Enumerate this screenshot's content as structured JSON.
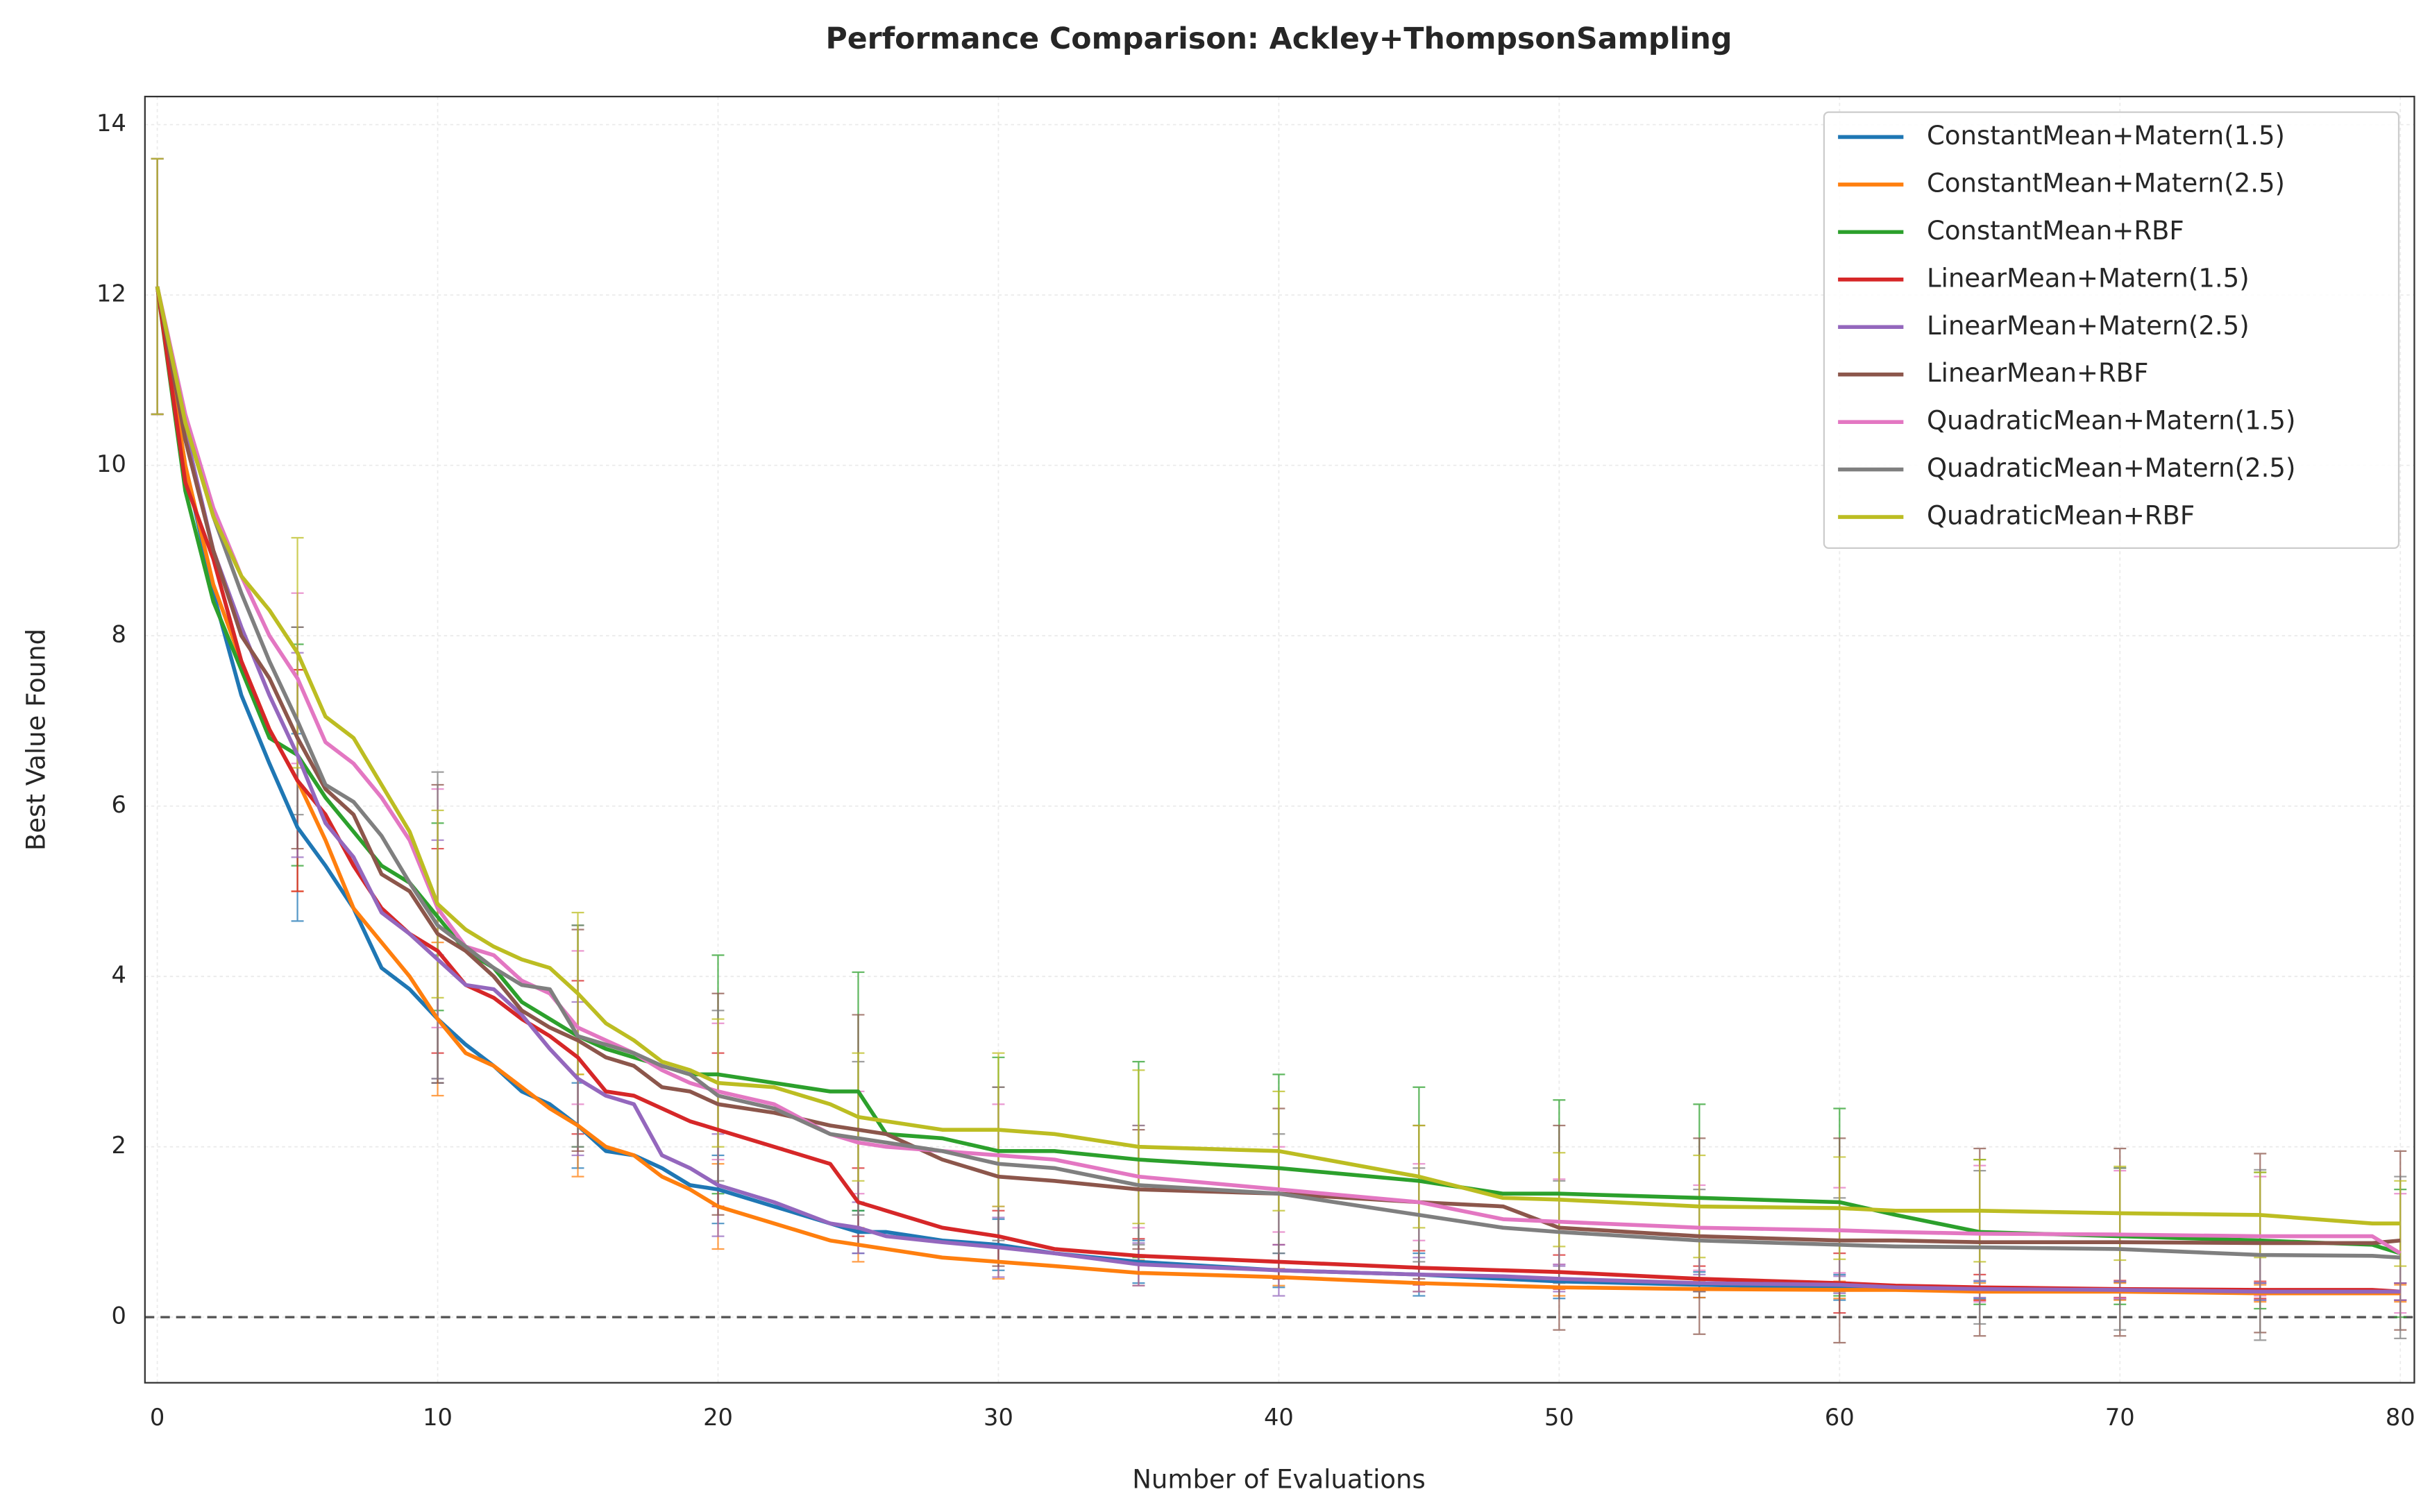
{
  "chart_data": {
    "type": "line",
    "title": "Performance Comparison: Ackley+ThompsonSampling",
    "x_label": "Number of Evaluations",
    "y_label": "Best Value Found",
    "xlim": [
      -0.44,
      80.5
    ],
    "ylim": [
      -0.77,
      14.33
    ],
    "xticks": [
      0,
      10,
      20,
      30,
      40,
      50,
      60,
      70,
      80
    ],
    "yticks": [
      0,
      2,
      4,
      6,
      8,
      10,
      12,
      14
    ],
    "grid": true,
    "legend": "upper right",
    "reference_line": 0,
    "x": [
      0,
      1,
      2,
      3,
      4,
      5,
      6,
      7,
      8,
      9,
      10,
      11,
      12,
      13,
      14,
      15,
      16,
      17,
      18,
      19,
      20,
      22,
      24,
      25,
      26,
      28,
      30,
      32,
      35,
      40,
      45,
      48,
      50,
      55,
      60,
      62,
      65,
      70,
      75,
      79,
      80
    ],
    "error_x": [
      0,
      5,
      10,
      15,
      20,
      25,
      30,
      35,
      40,
      45,
      50,
      55,
      60,
      65,
      70,
      75,
      80
    ],
    "series": [
      {
        "name": "ConstantMean+Matern(1.5)",
        "color": "#1f77b4",
        "values": [
          12.1,
          10,
          8.5,
          7.3,
          6.5,
          5.75,
          5.3,
          4.8,
          4.1,
          3.85,
          3.5,
          3.2,
          2.95,
          2.65,
          2.5,
          2.25,
          1.95,
          1.9,
          1.75,
          1.55,
          1.5,
          1.3,
          1.1,
          1.0,
          1.0,
          0.9,
          0.85,
          0.75,
          0.65,
          0.55,
          0.5,
          0.45,
          0.42,
          0.38,
          0.35,
          0.33,
          0.32,
          0.31,
          0.3,
          0.3,
          0.3
        ],
        "errors": [
          1.5,
          1.1,
          0.75,
          0.5,
          0.4,
          0.25,
          0.3,
          0.25,
          0.2,
          0.25,
          0.2,
          0.15,
          0.15,
          0.1,
          0.1,
          0.1,
          0.1
        ]
      },
      {
        "name": "ConstantMean+Matern(2.5)",
        "color": "#ff7f0e",
        "values": [
          12.1,
          10,
          8.6,
          7.7,
          6.9,
          6.3,
          5.6,
          4.8,
          4.4,
          4.0,
          3.5,
          3.1,
          2.95,
          2.7,
          2.45,
          2.25,
          2.0,
          1.9,
          1.65,
          1.5,
          1.3,
          1.1,
          0.9,
          0.85,
          0.8,
          0.7,
          0.65,
          0.6,
          0.52,
          0.47,
          0.4,
          0.37,
          0.35,
          0.33,
          0.32,
          0.32,
          0.3,
          0.3,
          0.28,
          0.28,
          0.28
        ],
        "errors": [
          1.5,
          1.3,
          0.9,
          0.6,
          0.5,
          0.2,
          0.2,
          0.15,
          0.1,
          0.1,
          0.1,
          0.1,
          0.1,
          0.1,
          0.1,
          0.1,
          0.1
        ]
      },
      {
        "name": "ConstantMean+RBF",
        "color": "#2ca02c",
        "values": [
          12.1,
          9.7,
          8.4,
          7.6,
          6.8,
          6.6,
          6.1,
          5.7,
          5.3,
          5.1,
          4.7,
          4.3,
          4.1,
          3.7,
          3.5,
          3.3,
          3.15,
          3.05,
          2.95,
          2.85,
          2.85,
          2.75,
          2.65,
          2.65,
          2.15,
          2.1,
          1.95,
          1.95,
          1.85,
          1.75,
          1.6,
          1.45,
          1.45,
          1.4,
          1.35,
          1.2,
          1.0,
          0.95,
          0.9,
          0.85,
          0.75
        ],
        "errors": [
          1.5,
          1.3,
          1.1,
          1.3,
          1.4,
          1.4,
          1.1,
          1.15,
          1.1,
          1.1,
          1.1,
          1.1,
          1.1,
          0.85,
          0.8,
          0.8,
          0.75
        ]
      },
      {
        "name": "LinearMean+Matern(1.5)",
        "color": "#d62728",
        "values": [
          12.1,
          9.8,
          8.9,
          7.7,
          6.9,
          6.3,
          5.9,
          5.3,
          4.8,
          4.5,
          4.3,
          3.9,
          3.75,
          3.5,
          3.3,
          3.05,
          2.65,
          2.6,
          2.45,
          2.3,
          2.2,
          2.0,
          1.8,
          1.35,
          1.25,
          1.05,
          0.95,
          0.8,
          0.72,
          0.65,
          0.58,
          0.55,
          0.53,
          0.45,
          0.4,
          0.37,
          0.35,
          0.33,
          0.32,
          0.32,
          0.3
        ],
        "errors": [
          1.5,
          1.3,
          1.2,
          0.9,
          0.9,
          0.4,
          0.3,
          0.2,
          0.2,
          0.2,
          0.2,
          0.15,
          0.35,
          0.15,
          0.1,
          0.1,
          0.1
        ]
      },
      {
        "name": "LinearMean+Matern(2.5)",
        "color": "#9467bd",
        "values": [
          12.1,
          10.4,
          9.0,
          8.1,
          7.3,
          6.6,
          5.8,
          5.4,
          4.75,
          4.5,
          4.2,
          3.9,
          3.85,
          3.55,
          3.15,
          2.8,
          2.6,
          2.5,
          1.9,
          1.75,
          1.55,
          1.35,
          1.1,
          1.05,
          0.95,
          0.88,
          0.82,
          0.75,
          0.62,
          0.55,
          0.5,
          0.48,
          0.45,
          0.4,
          0.38,
          0.35,
          0.33,
          0.32,
          0.3,
          0.3,
          0.3
        ],
        "errors": [
          1.5,
          1.2,
          1.4,
          0.9,
          0.6,
          0.3,
          0.35,
          0.25,
          0.3,
          0.2,
          0.15,
          0.1,
          0.1,
          0.1,
          0.1,
          0.1,
          0.1
        ]
      },
      {
        "name": "LinearMean+RBF",
        "color": "#8c564b",
        "values": [
          12.1,
          10.3,
          9.0,
          8.0,
          7.5,
          6.8,
          6.2,
          5.9,
          5.2,
          5.0,
          4.5,
          4.3,
          4.0,
          3.6,
          3.4,
          3.25,
          3.05,
          2.95,
          2.7,
          2.65,
          2.5,
          2.4,
          2.25,
          2.2,
          2.15,
          1.85,
          1.65,
          1.6,
          1.5,
          1.45,
          1.35,
          1.3,
          1.05,
          0.95,
          0.9,
          0.9,
          0.88,
          0.88,
          0.87,
          0.87,
          0.9
        ],
        "errors": [
          1.5,
          1.3,
          1.75,
          1.3,
          1.3,
          1.35,
          1.05,
          0.7,
          1.0,
          0.9,
          1.2,
          1.15,
          1.2,
          1.1,
          1.1,
          1.05,
          1.05
        ]
      },
      {
        "name": "QuadraticMean+Matern(1.5)",
        "color": "#e377c2",
        "values": [
          12.1,
          10.6,
          9.5,
          8.7,
          8.0,
          7.5,
          6.75,
          6.5,
          6.1,
          5.6,
          4.8,
          4.35,
          4.25,
          3.95,
          3.8,
          3.4,
          3.25,
          3.1,
          2.9,
          2.75,
          2.65,
          2.5,
          2.15,
          2.05,
          2.0,
          1.95,
          1.9,
          1.85,
          1.65,
          1.5,
          1.35,
          1.15,
          1.12,
          1.05,
          1.02,
          1.0,
          0.98,
          0.97,
          0.95,
          0.95,
          0.75
        ],
        "errors": [
          1.5,
          1.0,
          1.4,
          0.9,
          0.8,
          0.6,
          0.6,
          0.6,
          0.5,
          0.45,
          0.5,
          0.5,
          0.5,
          0.8,
          0.75,
          0.7,
          0.7
        ]
      },
      {
        "name": "QuadraticMean+Matern(2.5)",
        "color": "#7f7f7f",
        "values": [
          12.1,
          10.5,
          9.4,
          8.5,
          7.7,
          7.0,
          6.25,
          6.05,
          5.65,
          5.1,
          4.6,
          4.35,
          4.1,
          3.9,
          3.85,
          3.3,
          3.2,
          3.1,
          2.95,
          2.85,
          2.6,
          2.45,
          2.15,
          2.1,
          2.05,
          1.95,
          1.8,
          1.75,
          1.55,
          1.45,
          1.2,
          1.05,
          1.0,
          0.9,
          0.85,
          0.83,
          0.82,
          0.8,
          0.73,
          0.72,
          0.7
        ],
        "errors": [
          1.5,
          1.1,
          1.8,
          1.3,
          1.0,
          0.9,
          0.9,
          0.7,
          0.7,
          0.55,
          0.6,
          0.6,
          0.55,
          0.9,
          0.95,
          1.0,
          0.95
        ]
      },
      {
        "name": "QuadraticMean+RBF",
        "color": "#bcbd22",
        "values": [
          12.1,
          10.5,
          9.4,
          8.7,
          8.3,
          7.8,
          7.05,
          6.8,
          6.25,
          5.7,
          4.85,
          4.55,
          4.35,
          4.2,
          4.1,
          3.8,
          3.45,
          3.25,
          3.0,
          2.9,
          2.75,
          2.7,
          2.5,
          2.35,
          2.3,
          2.2,
          2.2,
          2.15,
          2.0,
          1.95,
          1.65,
          1.4,
          1.38,
          1.3,
          1.28,
          1.25,
          1.25,
          1.22,
          1.2,
          1.1,
          1.1
        ],
        "errors": [
          1.5,
          1.35,
          1.1,
          0.95,
          0.75,
          0.75,
          0.9,
          0.9,
          0.7,
          0.6,
          0.55,
          0.6,
          0.6,
          0.6,
          0.55,
          0.5,
          0.5
        ]
      }
    ]
  }
}
